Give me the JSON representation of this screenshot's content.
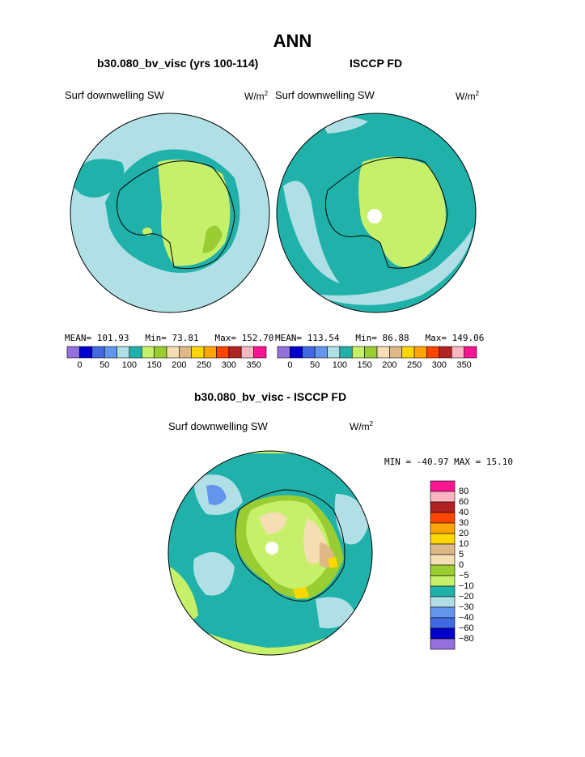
{
  "title": "ANN",
  "panels": [
    {
      "title": "b30.080_bv_visc (yrs 100-114)",
      "variable": "Surf downwelling SW",
      "units_base": "W/m",
      "units_exp": "2",
      "mean_label": "MEAN=",
      "mean": "101.93",
      "min_label": "Min=",
      "min": "73.81",
      "max_label": "Max=",
      "max": "152.70"
    },
    {
      "title": "ISCCP FD",
      "variable": "Surf downwelling SW",
      "units_base": "W/m",
      "units_exp": "2",
      "mean_label": "MEAN=",
      "mean": "113.54",
      "min_label": "Min=",
      "min": "86.88",
      "max_label": "Max=",
      "max": "149.06"
    }
  ],
  "diff": {
    "title": "b30.080_bv_visc - ISCCP FD",
    "variable": "Surf downwelling SW",
    "units_base": "W/m",
    "units_exp": "2",
    "stats": "MIN = -40.97 MAX =  15.10"
  },
  "chart_data": [
    {
      "type": "heatmap",
      "title": "b30.080_bv_visc (yrs 100-114)",
      "variable": "Surf downwelling SW",
      "units": "W/m2",
      "mean": 101.93,
      "min": 73.81,
      "max": 152.7,
      "colorbar": {
        "tick_labels": [
          "0",
          "50",
          "100",
          "150",
          "200",
          "250",
          "300",
          "350"
        ],
        "colors": [
          "#9370db",
          "#0000cd",
          "#4169e1",
          "#6495ed",
          "#b0e0e6",
          "#20b2aa",
          "#c6f06a",
          "#9acd32",
          "#f5deb3",
          "#deb887",
          "#ffd700",
          "#ffa500",
          "#ff4500",
          "#b22222",
          "#ffb6c1",
          "#ff1493"
        ]
      }
    },
    {
      "type": "heatmap",
      "title": "ISCCP FD",
      "variable": "Surf downwelling SW",
      "units": "W/m2",
      "mean": 113.54,
      "min": 86.88,
      "max": 149.06,
      "colorbar": {
        "tick_labels": [
          "0",
          "50",
          "100",
          "150",
          "200",
          "250",
          "300",
          "350"
        ],
        "colors": [
          "#9370db",
          "#0000cd",
          "#4169e1",
          "#6495ed",
          "#b0e0e6",
          "#20b2aa",
          "#c6f06a",
          "#9acd32",
          "#f5deb3",
          "#deb887",
          "#ffd700",
          "#ffa500",
          "#ff4500",
          "#b22222",
          "#ffb6c1",
          "#ff1493"
        ]
      }
    },
    {
      "type": "heatmap",
      "title": "b30.080_bv_visc - ISCCP FD",
      "variable": "Surf downwelling SW",
      "units": "W/m2",
      "min": -40.97,
      "max": 15.1,
      "colorbar": {
        "tick_labels": [
          "80",
          "60",
          "40",
          "30",
          "20",
          "10",
          "5",
          "0",
          "−5",
          "−10",
          "−20",
          "−30",
          "−40",
          "−60",
          "−80"
        ],
        "colors": [
          "#ff1493",
          "#ffb6c1",
          "#b22222",
          "#ff4500",
          "#ffa500",
          "#ffd700",
          "#deb887",
          "#f5deb3",
          "#9acd32",
          "#c6f06a",
          "#20b2aa",
          "#b0e0e6",
          "#6495ed",
          "#4169e1",
          "#0000cd",
          "#9370db"
        ]
      }
    }
  ]
}
